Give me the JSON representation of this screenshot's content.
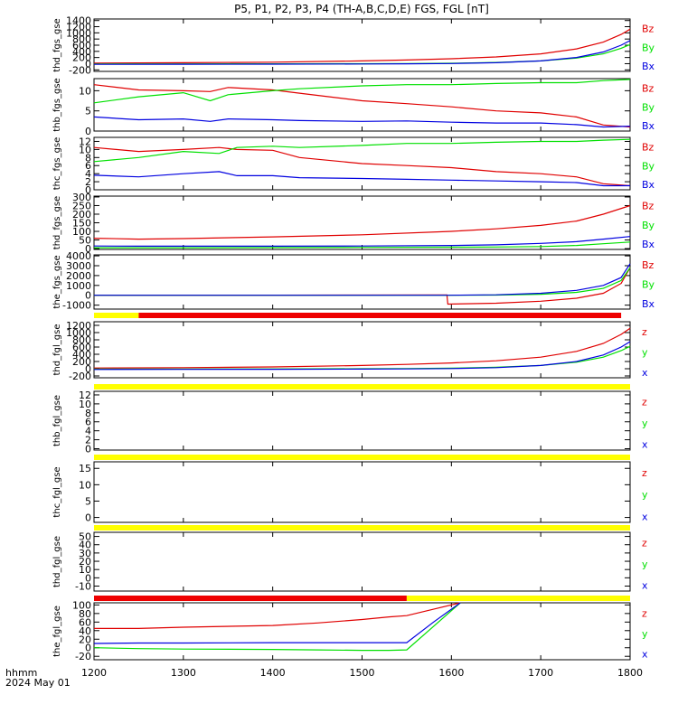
{
  "title": "P5, P1, P2, P3, P4 (TH-A,B,C,D,E) FGS, FGL [nT]",
  "time_axis": {
    "unit_label": "hhmm",
    "date_label": "2024 May 01",
    "ticks": [
      "1200",
      "1300",
      "1400",
      "1500",
      "1600",
      "1700",
      "1800"
    ],
    "range": [
      1200,
      1800
    ]
  },
  "colors": {
    "z": "#e00000",
    "y": "#00e000",
    "x": "#0000e0",
    "flag_yellow": "#ffff00",
    "flag_red": "#ee0000",
    "axis": "#000000"
  },
  "chart_data": [
    {
      "type": "line",
      "ylabel": "thd_fgs_gse",
      "yticks": [
        -200,
        0,
        200,
        400,
        600,
        800,
        1000,
        1200,
        1400
      ],
      "ylim": [
        -250,
        1450
      ],
      "x": [
        1200,
        1300,
        1400,
        1500,
        1550,
        1600,
        1650,
        1700,
        1740,
        1770,
        1790,
        1800
      ],
      "series": [
        {
          "name": "Bz",
          "key": "z",
          "values": [
            20,
            30,
            50,
            90,
            120,
            160,
            220,
            320,
            480,
            700,
            950,
            1120
          ]
        },
        {
          "name": "By",
          "key": "y",
          "values": [
            -10,
            -8,
            -5,
            0,
            5,
            15,
            40,
            90,
            180,
            320,
            500,
            620
          ]
        },
        {
          "name": "Bx",
          "key": "x",
          "values": [
            -20,
            -18,
            -15,
            -10,
            -5,
            5,
            30,
            90,
            200,
            380,
            600,
            750
          ]
        }
      ]
    },
    {
      "type": "line",
      "ylabel": "thb_fgs_gse",
      "yticks": [
        0,
        5,
        10
      ],
      "ylim": [
        0,
        13
      ],
      "x": [
        1200,
        1250,
        1300,
        1330,
        1350,
        1400,
        1430,
        1500,
        1550,
        1600,
        1650,
        1700,
        1740,
        1770,
        1800
      ],
      "series": [
        {
          "name": "Bz",
          "key": "z",
          "values": [
            11.5,
            10.2,
            10.0,
            9.8,
            10.8,
            10.2,
            9.4,
            7.5,
            6.8,
            6.0,
            5.0,
            4.5,
            3.5,
            1.5,
            1.0
          ]
        },
        {
          "name": "By",
          "key": "y",
          "values": [
            7.0,
            8.5,
            9.5,
            7.5,
            9.0,
            10.0,
            10.5,
            11.2,
            11.5,
            11.5,
            11.8,
            12.0,
            12.0,
            12.5,
            12.8
          ]
        },
        {
          "name": "Bx",
          "key": "x",
          "values": [
            3.5,
            2.8,
            3.0,
            2.4,
            3.0,
            2.8,
            2.6,
            2.4,
            2.5,
            2.2,
            2.0,
            2.0,
            1.6,
            1.0,
            1.2
          ]
        }
      ]
    },
    {
      "type": "line",
      "ylabel": "thc_fgs_gse",
      "yticks": [
        0,
        2,
        4,
        6,
        8,
        10,
        12
      ],
      "ylim": [
        0,
        13
      ],
      "x": [
        1200,
        1250,
        1300,
        1340,
        1360,
        1400,
        1430,
        1500,
        1550,
        1600,
        1650,
        1700,
        1740,
        1770,
        1800
      ],
      "series": [
        {
          "name": "Bz",
          "key": "z",
          "values": [
            10.5,
            9.5,
            10.0,
            10.5,
            10.0,
            9.8,
            8.0,
            6.5,
            6.0,
            5.5,
            4.5,
            4.0,
            3.2,
            1.5,
            1.0
          ]
        },
        {
          "name": "By",
          "key": "y",
          "values": [
            7.0,
            8.0,
            9.5,
            9.0,
            10.5,
            10.8,
            10.5,
            11.0,
            11.5,
            11.5,
            11.8,
            12.0,
            12.0,
            12.3,
            12.5
          ]
        },
        {
          "name": "Bx",
          "key": "x",
          "values": [
            3.6,
            3.2,
            4.0,
            4.5,
            3.5,
            3.5,
            3.0,
            2.8,
            2.6,
            2.4,
            2.2,
            2.0,
            1.8,
            1.0,
            1.0
          ]
        }
      ]
    },
    {
      "type": "line",
      "ylabel": "thd_fgs_gse",
      "yticks": [
        0,
        50,
        100,
        150,
        200,
        250,
        300
      ],
      "ylim": [
        -5,
        305
      ],
      "x": [
        1200,
        1250,
        1300,
        1400,
        1500,
        1600,
        1650,
        1700,
        1740,
        1770,
        1800
      ],
      "series": [
        {
          "name": "Bz",
          "key": "z",
          "values": [
            60,
            55,
            58,
            68,
            80,
            100,
            115,
            135,
            160,
            200,
            250
          ]
        },
        {
          "name": "By",
          "key": "y",
          "values": [
            5,
            5,
            5,
            6,
            7,
            8,
            9,
            12,
            18,
            28,
            38
          ]
        },
        {
          "name": "Bx",
          "key": "x",
          "values": [
            15,
            14,
            14,
            14,
            15,
            18,
            22,
            30,
            40,
            55,
            70
          ]
        }
      ]
    },
    {
      "type": "line",
      "ylabel": "the_fgs_gse",
      "yticks": [
        -1000,
        0,
        1000,
        2000,
        3000,
        4000
      ],
      "ylim": [
        -1400,
        4100
      ],
      "x": [
        1200,
        1300,
        1400,
        1500,
        1595,
        1596,
        1650,
        1700,
        1740,
        1770,
        1790,
        1800
      ],
      "series": [
        {
          "name": "Bz",
          "key": "z",
          "values": [
            0,
            5,
            10,
            20,
            40,
            -900,
            -800,
            -600,
            -300,
            200,
            1200,
            2800
          ]
        },
        {
          "name": "By",
          "key": "y",
          "values": [
            0,
            0,
            0,
            0,
            0,
            0,
            20,
            100,
            300,
            700,
            1500,
            2800
          ]
        },
        {
          "name": "Bx",
          "key": "x",
          "values": [
            0,
            0,
            0,
            0,
            0,
            0,
            50,
            200,
            500,
            1000,
            1800,
            3200
          ]
        }
      ]
    },
    {
      "type": "line",
      "ylabel": "thd_fgl_gse",
      "yticks": [
        -200,
        0,
        200,
        400,
        600,
        800,
        1000,
        1200
      ],
      "ylim": [
        -250,
        1300
      ],
      "x": [
        1200,
        1300,
        1400,
        1500,
        1550,
        1600,
        1650,
        1700,
        1740,
        1770,
        1790,
        1800
      ],
      "series": [
        {
          "name": "z",
          "key": "z",
          "values": [
            20,
            30,
            50,
            90,
            120,
            160,
            220,
            320,
            480,
            700,
            950,
            1120
          ]
        },
        {
          "name": "y",
          "key": "y",
          "values": [
            -10,
            -8,
            -5,
            0,
            5,
            15,
            40,
            90,
            180,
            320,
            500,
            620
          ]
        },
        {
          "name": "x",
          "key": "x",
          "values": [
            -20,
            -18,
            -15,
            -10,
            -5,
            5,
            30,
            90,
            200,
            380,
            600,
            750
          ]
        }
      ]
    },
    {
      "type": "line",
      "ylabel": "thb_fgl_gse",
      "yticks": [
        0,
        2,
        4,
        6,
        8,
        10,
        12
      ],
      "ylim": [
        -0.3,
        12.8
      ],
      "series": [
        {
          "name": "z",
          "key": "z",
          "values": []
        },
        {
          "name": "y",
          "key": "y",
          "values": []
        },
        {
          "name": "x",
          "key": "x",
          "values": []
        }
      ]
    },
    {
      "type": "line",
      "ylabel": "thc_fgl_gse",
      "yticks": [
        0,
        5,
        10,
        15
      ],
      "ylim": [
        -1.5,
        17
      ],
      "series": [
        {
          "name": "z",
          "key": "z",
          "values": []
        },
        {
          "name": "y",
          "key": "y",
          "values": []
        },
        {
          "name": "x",
          "key": "x",
          "values": []
        }
      ]
    },
    {
      "type": "line",
      "ylabel": "thd_fgl_gse",
      "yticks": [
        -10,
        0,
        10,
        20,
        30,
        40,
        50
      ],
      "ylim": [
        -16,
        55
      ],
      "series": [
        {
          "name": "z",
          "key": "z",
          "values": []
        },
        {
          "name": "y",
          "key": "y",
          "values": []
        },
        {
          "name": "x",
          "key": "x",
          "values": []
        }
      ]
    },
    {
      "type": "line",
      "ylabel": "the_fgl_gse",
      "yticks": [
        -20,
        0,
        20,
        40,
        60,
        80,
        100
      ],
      "ylim": [
        -28,
        105
      ],
      "x": [
        1200,
        1250,
        1300,
        1400,
        1450,
        1500,
        1530,
        1550,
        1580,
        1610
      ],
      "series": [
        {
          "name": "z",
          "key": "z",
          "values": [
            45,
            45,
            48,
            52,
            58,
            66,
            72,
            75,
            90,
            105
          ]
        },
        {
          "name": "y",
          "key": "y",
          "values": [
            0,
            -2,
            -3,
            -4,
            -5,
            -6,
            -6,
            -5,
            50,
            105
          ]
        },
        {
          "name": "x",
          "key": "x",
          "values": [
            10,
            11,
            11,
            12,
            12,
            12,
            12,
            12,
            60,
            105
          ]
        }
      ]
    }
  ]
}
